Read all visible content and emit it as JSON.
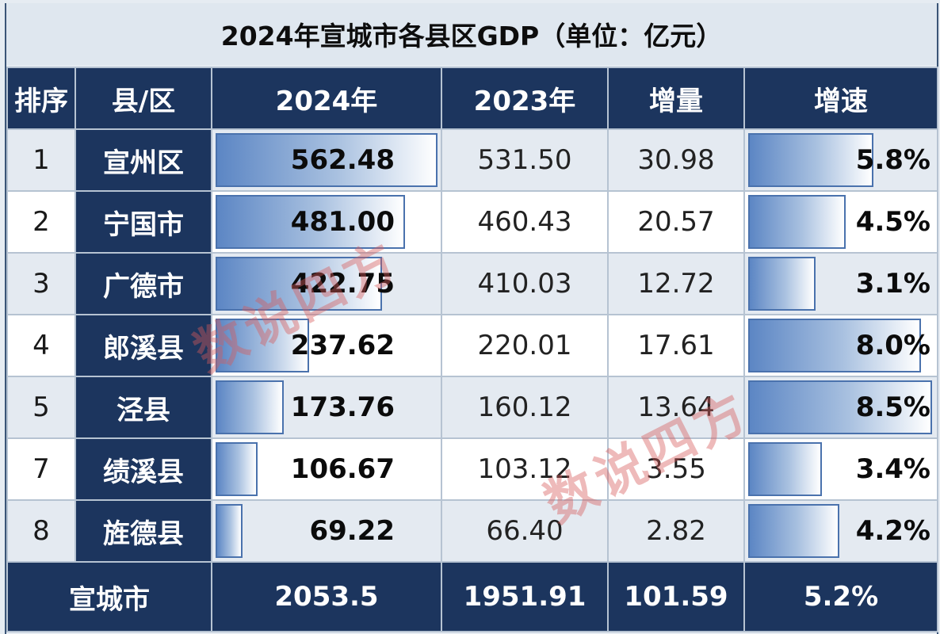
{
  "title": "2024年宣城市各县区GDP（单位：亿元）",
  "headers": {
    "rank": "排序",
    "county": "县/区",
    "gdp2024": "2024年",
    "gdp2023": "2023年",
    "increase": "增量",
    "growth": "增速"
  },
  "rows": [
    {
      "rank": "1",
      "name": "宣州区",
      "gdp2024": "562.48",
      "gdp2023": "531.50",
      "increase": "30.98",
      "growth": "5.8%",
      "gdp_value": 562.48,
      "growth_value": 5.8
    },
    {
      "rank": "2",
      "name": "宁国市",
      "gdp2024": "481.00",
      "gdp2023": "460.43",
      "increase": "20.57",
      "growth": "4.5%",
      "gdp_value": 481.0,
      "growth_value": 4.5
    },
    {
      "rank": "3",
      "name": "广德市",
      "gdp2024": "422.75",
      "gdp2023": "410.03",
      "increase": "12.72",
      "growth": "3.1%",
      "gdp_value": 422.75,
      "growth_value": 3.1
    },
    {
      "rank": "4",
      "name": "郎溪县",
      "gdp2024": "237.62",
      "gdp2023": "220.01",
      "increase": "17.61",
      "growth": "8.0%",
      "gdp_value": 237.62,
      "growth_value": 8.0
    },
    {
      "rank": "5",
      "name": "泾县",
      "gdp2024": "173.76",
      "gdp2023": "160.12",
      "increase": "13.64",
      "growth": "8.5%",
      "gdp_value": 173.76,
      "growth_value": 8.5
    },
    {
      "rank": "7",
      "name": "绩溪县",
      "gdp2024": "106.67",
      "gdp2023": "103.12",
      "increase": "3.55",
      "growth": "3.4%",
      "gdp_value": 106.67,
      "growth_value": 3.4
    },
    {
      "rank": "8",
      "name": "旌德县",
      "gdp2024": "69.22",
      "gdp2023": "66.40",
      "increase": "2.82",
      "growth": "4.2%",
      "gdp_value": 69.22,
      "growth_value": 4.2
    }
  ],
  "total": {
    "name": "宣城市",
    "gdp2024": "2053.5",
    "gdp2023": "1951.91",
    "increase": "101.59",
    "growth": "5.2%"
  },
  "watermark": "数说四方",
  "colors": {
    "header_bg": "#1c355e",
    "bar_fill": "#5c86c4",
    "bar_border": "#4a72ad",
    "watermark": "#d65a5a"
  }
}
